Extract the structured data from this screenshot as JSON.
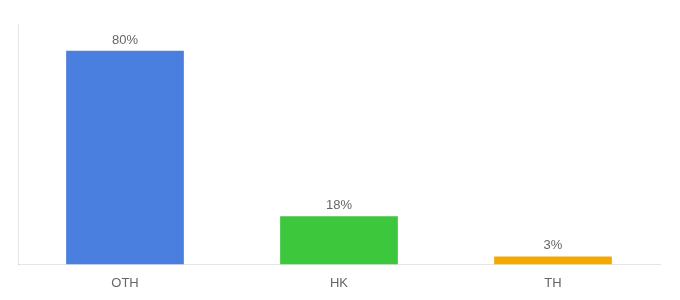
{
  "chart_data": {
    "type": "bar",
    "categories": [
      "OTH",
      "HK",
      "TH"
    ],
    "values": [
      80,
      18,
      3
    ],
    "value_labels": [
      "80%",
      "18%",
      "3%"
    ],
    "data_labels": true,
    "colors": [
      "#4a7fe0",
      "#3dc73d",
      "#f5a800"
    ],
    "ylim": [
      0,
      90
    ],
    "tick_labels": "x",
    "grid": false
  }
}
